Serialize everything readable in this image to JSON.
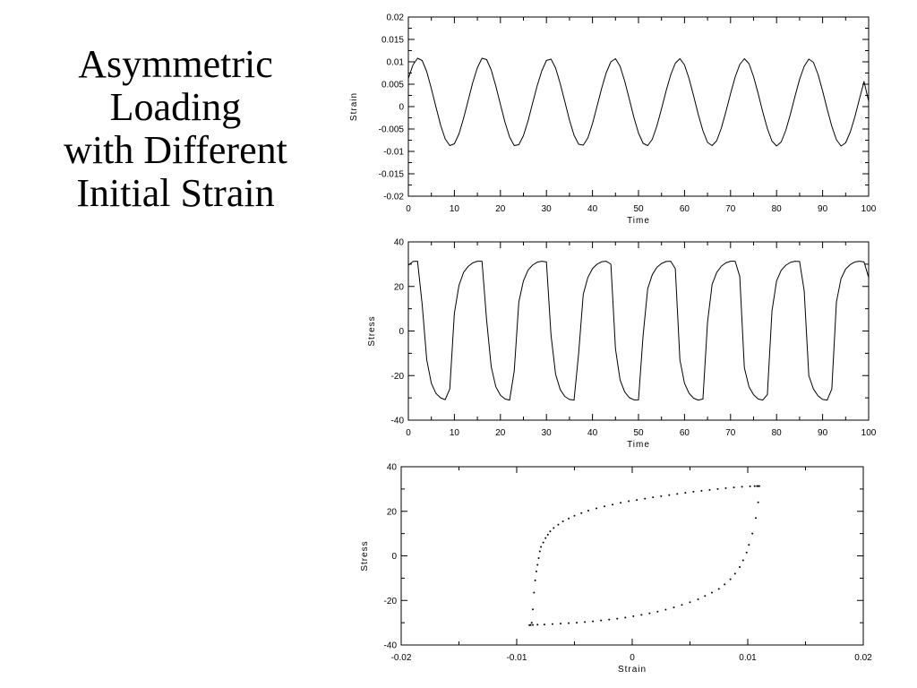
{
  "slide": {
    "title_lines": [
      "Asymmetric",
      "Loading",
      "with Different",
      "Initial Strain"
    ]
  },
  "chart_data": [
    {
      "type": "line",
      "xlabel": "Time",
      "ylabel": "Strain",
      "xlim": [
        0,
        100
      ],
      "ylim": [
        -0.02,
        0.02
      ],
      "xticks": [
        "0",
        "10",
        "20",
        "30",
        "40",
        "50",
        "60",
        "70",
        "80",
        "90",
        "100"
      ],
      "yticks": [
        "0.02",
        "0.015",
        "0.01",
        "0.005",
        "0",
        "-0.005",
        "-0.01",
        "-0.015",
        "-0.02"
      ],
      "series": [
        {
          "x": [
            0,
            1,
            2,
            3,
            4,
            5,
            6,
            7,
            8,
            9,
            10,
            11,
            12,
            13,
            14,
            15,
            16,
            17,
            18,
            19,
            20,
            21,
            22,
            23,
            24,
            25,
            26,
            27,
            28,
            29,
            30,
            31,
            32,
            33,
            34,
            35,
            36,
            37,
            38,
            39,
            40,
            41,
            42,
            43,
            44,
            45,
            46,
            47,
            48,
            49,
            50,
            51,
            52,
            53,
            54,
            55,
            56,
            57,
            58,
            59,
            60,
            61,
            62,
            63,
            64,
            65,
            66,
            67,
            68,
            69,
            70,
            71,
            72,
            73,
            74,
            75,
            76,
            77,
            78,
            79,
            80,
            81,
            82,
            83,
            84,
            85,
            86,
            87,
            88,
            89,
            90,
            91,
            92,
            93,
            94,
            95,
            96,
            97,
            98,
            99,
            100
          ],
          "y": [
            0.0063,
            0.0093,
            0.0108,
            0.0103,
            0.0078,
            0.004,
            -0.0001,
            -0.0041,
            -0.0072,
            -0.0087,
            -0.0083,
            -0.0061,
            -0.0026,
            0.0014,
            0.0054,
            0.0087,
            0.0108,
            0.0105,
            0.0082,
            0.0046,
            0.0005,
            -0.0035,
            -0.0068,
            -0.0087,
            -0.0085,
            -0.0065,
            -0.0032,
            0.0008,
            0.0047,
            0.008,
            0.0103,
            0.0106,
            0.0086,
            0.0051,
            0.0011,
            -0.003,
            -0.0064,
            -0.0084,
            -0.0086,
            -0.007,
            -0.0038,
            0.0001,
            0.0041,
            0.0076,
            0.01,
            0.0107,
            0.009,
            0.0057,
            0.0017,
            -0.0024,
            -0.0059,
            -0.0082,
            -0.0087,
            -0.0073,
            -0.0043,
            -0.0005,
            0.0035,
            0.0071,
            0.0097,
            0.0107,
            0.0093,
            0.0062,
            0.0023,
            -0.0018,
            -0.0054,
            -0.008,
            -0.0087,
            -0.0076,
            -0.0048,
            -0.0011,
            0.0029,
            0.0066,
            0.0094,
            0.0107,
            0.0096,
            0.0067,
            0.0029,
            -0.0012,
            -0.0049,
            -0.0077,
            -0.0088,
            -0.0079,
            -0.0053,
            -0.0017,
            0.0023,
            0.0061,
            0.009,
            0.0106,
            0.0099,
            0.0072,
            0.0035,
            -0.0006,
            -0.0044,
            -0.0074,
            -0.0088,
            -0.0081,
            -0.0057,
            -0.0023,
            0.0017,
            0.0056,
            0.0012
          ]
        }
      ]
    },
    {
      "type": "line",
      "xlabel": "Time",
      "ylabel": "Stress",
      "xlim": [
        0,
        100
      ],
      "ylim": [
        -40,
        40
      ],
      "xticks": [
        "0",
        "10",
        "20",
        "30",
        "40",
        "50",
        "60",
        "70",
        "80",
        "90",
        "100"
      ],
      "yticks": [
        "40",
        "20",
        "0",
        "-20",
        "-40"
      ],
      "series": [
        {
          "x": [
            0,
            1,
            2,
            3,
            4,
            5,
            6,
            7,
            8,
            9,
            10,
            11,
            12,
            13,
            14,
            15,
            16,
            17,
            18,
            19,
            20,
            21,
            22,
            23,
            24,
            25,
            26,
            27,
            28,
            29,
            30,
            31,
            32,
            33,
            34,
            35,
            36,
            37,
            38,
            39,
            40,
            41,
            42,
            43,
            44,
            45,
            46,
            47,
            48,
            49,
            50,
            51,
            52,
            53,
            54,
            55,
            56,
            57,
            58,
            59,
            60,
            61,
            62,
            63,
            64,
            65,
            66,
            67,
            68,
            69,
            70,
            71,
            72,
            73,
            74,
            75,
            76,
            77,
            78,
            79,
            80,
            81,
            82,
            83,
            84,
            85,
            86,
            87,
            88,
            89,
            90,
            91,
            92,
            93,
            94,
            95,
            96,
            97,
            98,
            99,
            100
          ],
          "y": [
            29.5,
            31.2,
            31.3,
            12.0,
            -13.0,
            -23.5,
            -28.0,
            -30.0,
            -30.8,
            -26.0,
            8.0,
            20.5,
            26.3,
            29.0,
            30.6,
            31.3,
            31.3,
            5.0,
            -16.0,
            -25.0,
            -28.8,
            -30.5,
            -31.0,
            -18.0,
            13.0,
            22.5,
            27.3,
            29.6,
            30.9,
            31.3,
            31.0,
            -2.0,
            -19.5,
            -26.3,
            -29.4,
            -30.7,
            -31.0,
            -10.0,
            16.5,
            24.0,
            28.0,
            30.0,
            31.1,
            31.3,
            30.0,
            -8.0,
            -22.0,
            -27.3,
            -29.9,
            -30.9,
            -30.9,
            -2.0,
            19.0,
            25.3,
            28.6,
            30.3,
            31.2,
            31.3,
            28.0,
            -13.0,
            -23.5,
            -28.0,
            -30.2,
            -31.0,
            -30.5,
            4.0,
            21.0,
            26.3,
            29.1,
            30.6,
            31.3,
            31.3,
            24.5,
            -16.5,
            -25.0,
            -28.6,
            -30.5,
            -31.0,
            -28.5,
            9.0,
            22.5,
            27.2,
            29.5,
            30.8,
            31.3,
            31.2,
            18.0,
            -20.0,
            -26.0,
            -29.1,
            -30.7,
            -31.0,
            -26.0,
            13.0,
            23.5,
            27.8,
            29.8,
            31.0,
            31.3,
            31.0,
            24.0
          ]
        }
      ]
    },
    {
      "type": "scatter",
      "xlabel": "Strain",
      "ylabel": "Stress",
      "xlim": [
        -0.02,
        0.02
      ],
      "ylim": [
        -40,
        40
      ],
      "xticks": [
        "-0.02",
        "-0.01",
        "0",
        "0.01",
        "0.02"
      ],
      "yticks": [
        "40",
        "20",
        "0",
        "-20",
        "-40"
      ],
      "series": [
        {
          "x": [
            -0.0088,
            -0.0087,
            -0.0086,
            -0.0085,
            -0.0084,
            -0.0083,
            -0.0082,
            -0.0081,
            -0.008,
            -0.0079,
            -0.0077,
            -0.0075,
            -0.0073,
            -0.0071,
            -0.0068,
            -0.0064,
            -0.006,
            -0.0055,
            -0.005,
            -0.0044,
            -0.0038,
            -0.0031,
            -0.0024,
            -0.0017,
            -0.001,
            -0.0003,
            0.0004,
            0.0011,
            0.0018,
            0.0025,
            0.0032,
            0.0039,
            0.0046,
            0.0053,
            0.006,
            0.0067,
            0.0074,
            0.0081,
            0.0088,
            0.0095,
            0.0102,
            0.0106,
            0.0108,
            0.0109,
            0.011,
            0.0109,
            0.0107,
            0.0104,
            0.0101,
            0.0099,
            0.0096,
            0.0093,
            0.0089,
            0.0085,
            0.008,
            0.0075,
            0.0069,
            0.0063,
            0.0057,
            0.005,
            0.0043,
            0.0036,
            0.0029,
            0.0022,
            0.0015,
            0.0008,
            0.0001,
            -0.0006,
            -0.0013,
            -0.002,
            -0.0027,
            -0.0034,
            -0.0041,
            -0.0048,
            -0.0055,
            -0.0062,
            -0.0069,
            -0.0076,
            -0.0082,
            -0.0086,
            -0.0088,
            -0.0089
          ],
          "y": [
            -31.0,
            -30.0,
            -24.0,
            -16.5,
            -11.0,
            -7.0,
            -4.0,
            -1.0,
            2.0,
            4.0,
            6.0,
            8.0,
            9.5,
            11.0,
            12.5,
            14.0,
            15.5,
            16.8,
            18.0,
            19.2,
            20.3,
            21.3,
            22.2,
            23.0,
            23.8,
            24.5,
            25.1,
            25.7,
            26.3,
            26.8,
            27.3,
            27.8,
            28.3,
            28.8,
            29.2,
            29.6,
            30.0,
            30.4,
            30.7,
            31.0,
            31.2,
            31.3,
            31.3,
            31.3,
            31.3,
            24.0,
            17.0,
            10.0,
            5.0,
            1.5,
            -2.0,
            -5.0,
            -8.0,
            -10.5,
            -12.8,
            -14.8,
            -16.5,
            -18.0,
            -19.5,
            -20.8,
            -22.0,
            -23.1,
            -24.1,
            -25.0,
            -25.8,
            -26.5,
            -27.1,
            -27.7,
            -28.2,
            -28.6,
            -29.0,
            -29.4,
            -29.7,
            -30.0,
            -30.2,
            -30.4,
            -30.6,
            -30.8,
            -30.9,
            -31.0,
            -31.0,
            -31.1
          ]
        }
      ]
    }
  ]
}
